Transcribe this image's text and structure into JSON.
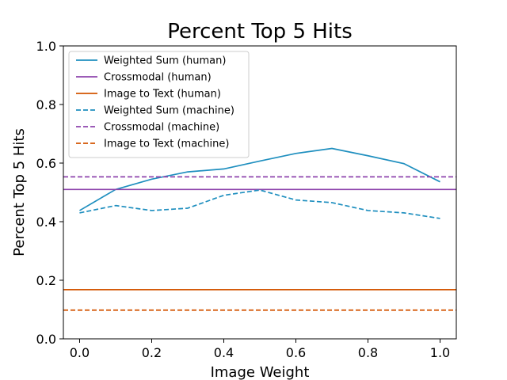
{
  "chart_data": {
    "type": "line",
    "title": "Percent Top 5 Hits",
    "xlabel": "Image Weight",
    "ylabel": "Percent Top 5 Hits",
    "xlim": [
      -0.045,
      1.045
    ],
    "ylim": [
      0.0,
      1.0
    ],
    "xticks": [
      0.0,
      0.2,
      0.4,
      0.6,
      0.8,
      1.0
    ],
    "xtick_labels": [
      "0.0",
      "0.2",
      "0.4",
      "0.6",
      "0.8",
      "1.0"
    ],
    "yticks": [
      0.0,
      0.2,
      0.4,
      0.6,
      0.8,
      1.0
    ],
    "ytick_labels": [
      "0.0",
      "0.2",
      "0.4",
      "0.6",
      "0.8",
      "1.0"
    ],
    "grid": false,
    "legend_position": "top-left",
    "x": [
      0.0,
      0.1,
      0.2,
      0.3,
      0.4,
      0.5,
      0.6,
      0.7,
      0.8,
      0.9,
      1.0
    ],
    "series": [
      {
        "name": "Weighted Sum (human)",
        "kind": "line",
        "style": "solid",
        "color": "#1f8fbf",
        "values": [
          0.438,
          0.51,
          0.545,
          0.57,
          0.58,
          0.607,
          0.633,
          0.65,
          0.625,
          0.598,
          0.536
        ]
      },
      {
        "name": "Crossmodal (human)",
        "kind": "hline",
        "style": "solid",
        "color": "#8e44ad",
        "value": 0.51
      },
      {
        "name": "Image to Text (human)",
        "kind": "hline",
        "style": "solid",
        "color": "#d35400",
        "value": 0.168
      },
      {
        "name": "Weighted Sum (machine)",
        "kind": "line",
        "style": "dashed",
        "color": "#1f8fbf",
        "values": [
          0.43,
          0.455,
          0.438,
          0.446,
          0.49,
          0.508,
          0.474,
          0.465,
          0.438,
          0.43,
          0.411
        ]
      },
      {
        "name": "Crossmodal (machine)",
        "kind": "hline",
        "style": "dashed",
        "color": "#8e44ad",
        "value": 0.553
      },
      {
        "name": "Image to Text (machine)",
        "kind": "hline",
        "style": "dashed",
        "color": "#d35400",
        "value": 0.098
      }
    ]
  }
}
